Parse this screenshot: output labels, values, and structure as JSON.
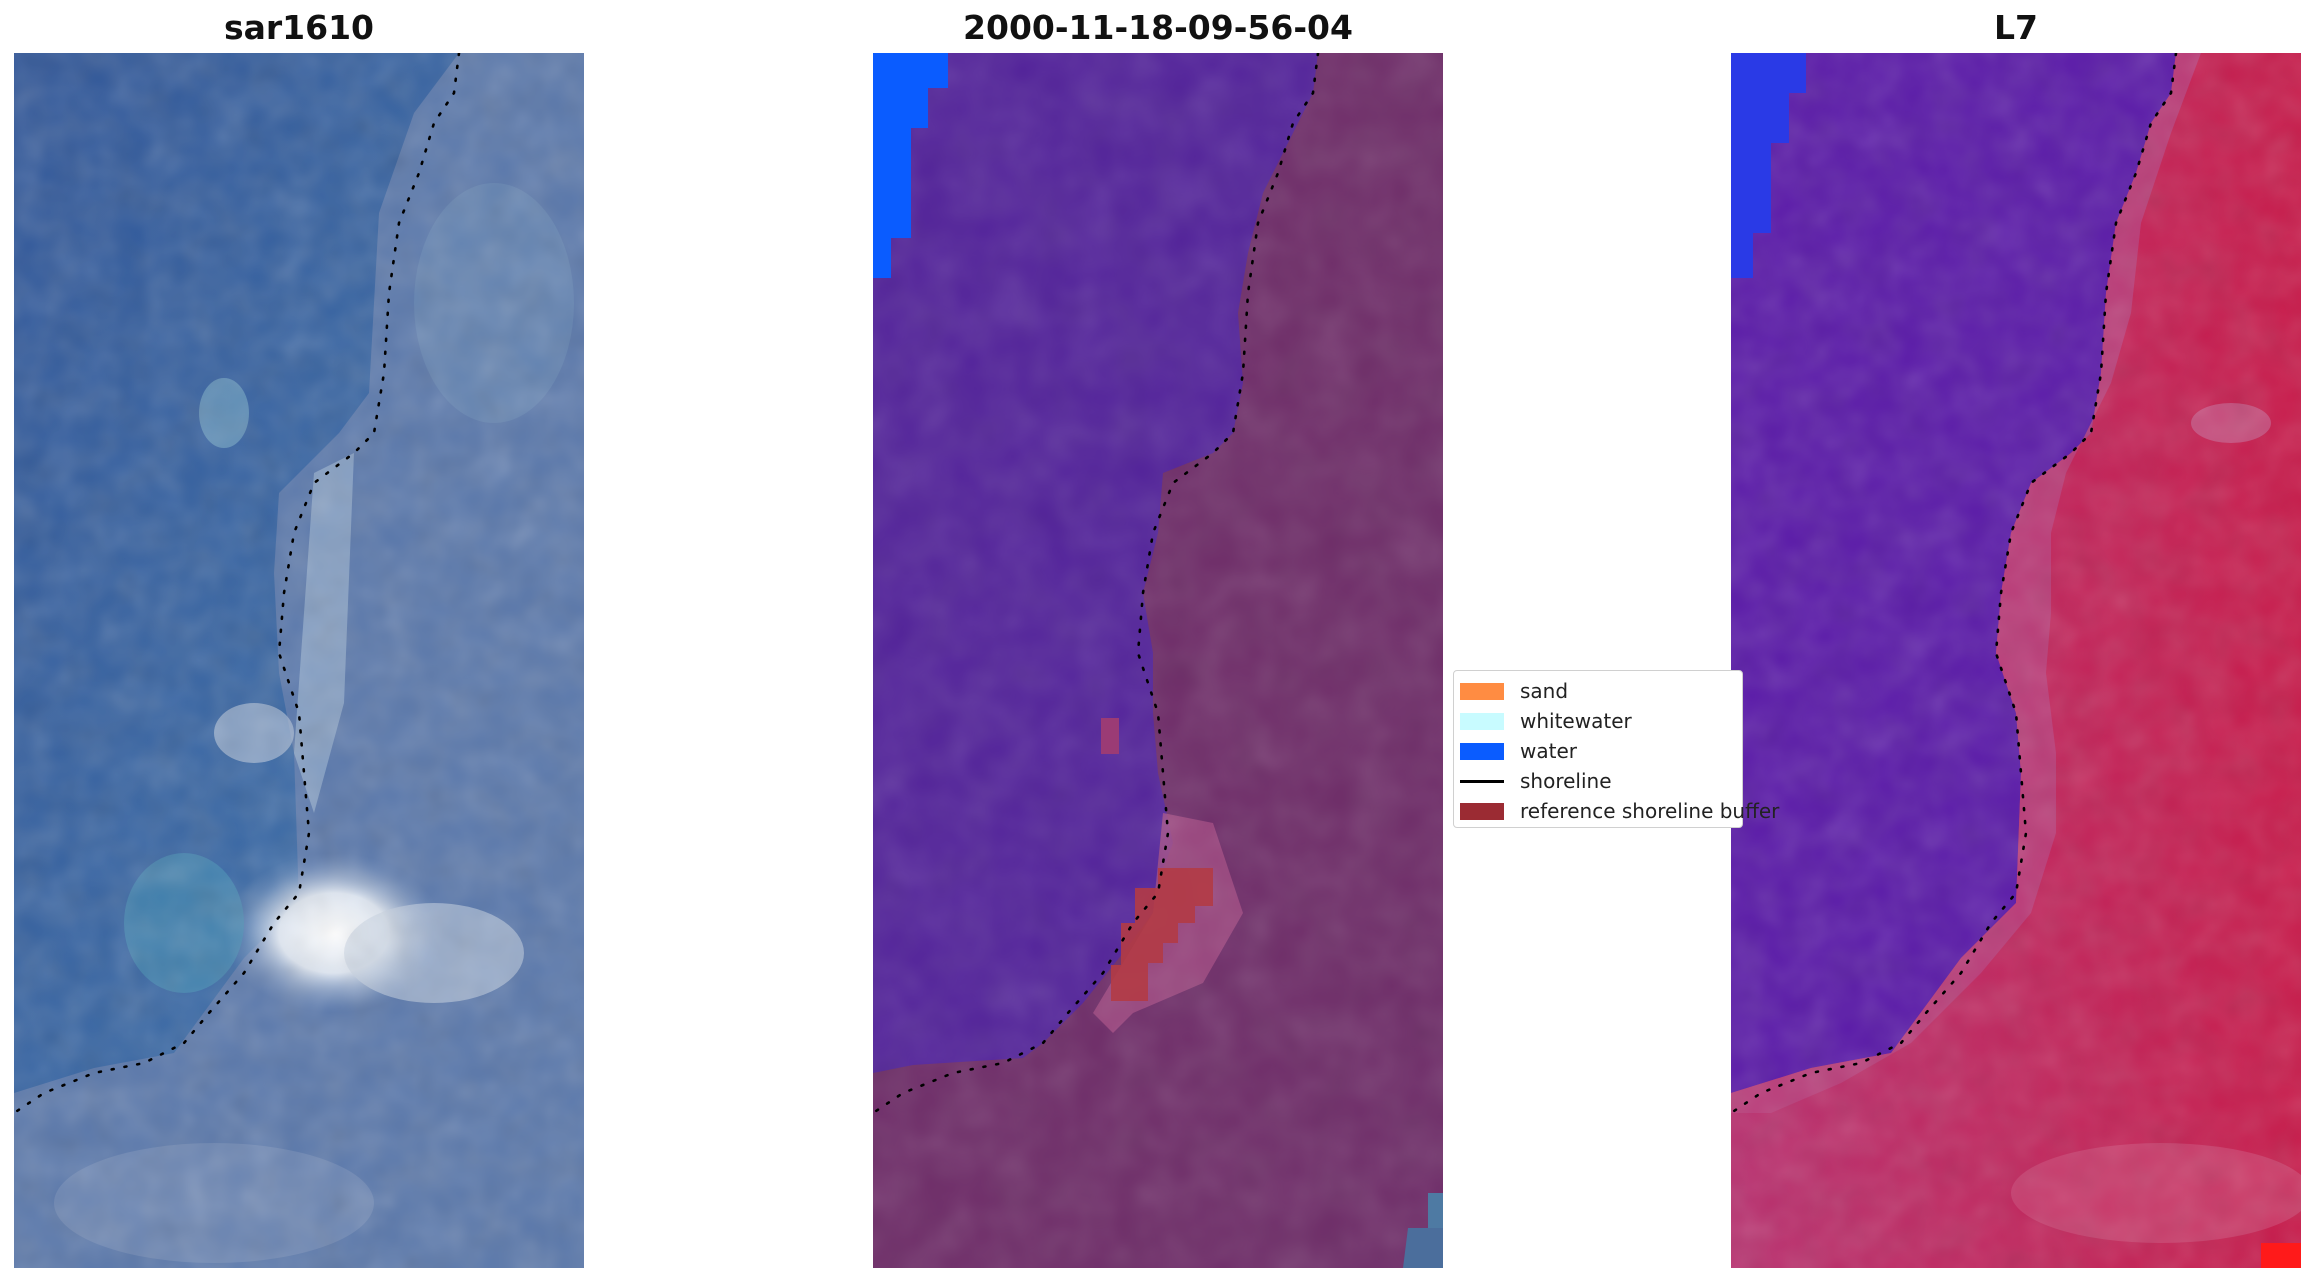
{
  "panels": [
    {
      "title": "sar1610"
    },
    {
      "title": "2000-11-18-09-56-04"
    },
    {
      "title": "L7"
    }
  ],
  "legend": {
    "items": [
      {
        "label": "sand",
        "color": "#ff8c42",
        "kind": "patch"
      },
      {
        "label": "whitewater",
        "color": "#c8fbff",
        "kind": "patch"
      },
      {
        "label": "water",
        "color": "#0a5cff",
        "kind": "patch"
      },
      {
        "label": "shoreline",
        "color": "#000000",
        "kind": "line"
      },
      {
        "label": "reference shoreline buffer",
        "color": "#9b2b33",
        "kind": "patch"
      }
    ]
  },
  "colors": {
    "rgb_water": "#3a5fa0",
    "rgb_land": "#5877aa",
    "rgb_whitewater": "#e8eef7",
    "classified_water_fill": "#52229a",
    "classified_land_fill": "#6e2c68",
    "l7_water": "#5a1aa8",
    "l7_land": "#c22060",
    "shoreline_dots": "#000000"
  }
}
